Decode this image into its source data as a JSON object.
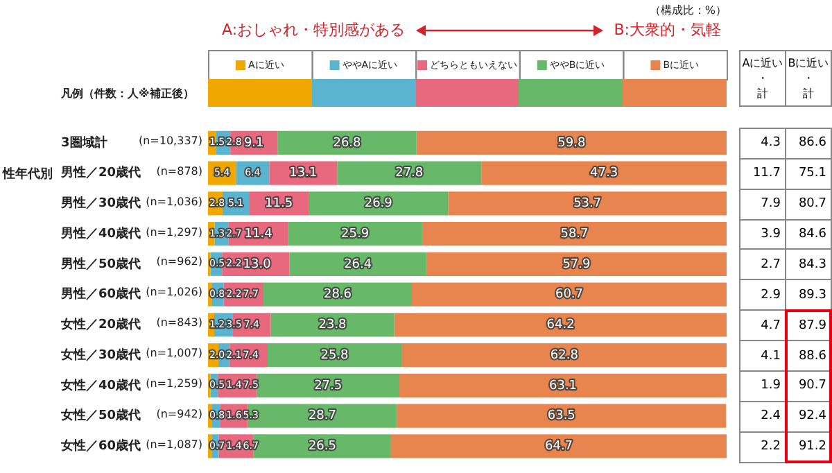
{
  "chart_data": {
    "type": "bar",
    "orientation": "horizontal",
    "stacked": true,
    "categories": [
      "3圏域計",
      "男性／20歳代",
      "男性／30歳代",
      "男性／40歳代",
      "男性／50歳代",
      "男性／60歳代",
      "女性／20歳代",
      "女性／30歳代",
      "女性／40歳代",
      "女性／50歳代",
      "女性／60歳代"
    ],
    "series": [
      {
        "name": "Aに近い",
        "color": "#f0a800",
        "values": [
          1.5,
          5.4,
          2.8,
          1.3,
          0.5,
          0.8,
          1.2,
          2.0,
          0.5,
          0.8,
          0.7
        ],
        "value_labels": [
          "1.5",
          "5.4",
          "2.8",
          "1.3",
          "0.5",
          "0.8",
          "1.2",
          "2.0",
          "0.5",
          "0.8",
          "0.7"
        ]
      },
      {
        "name": "ややAに近い",
        "color": "#5ab4d0",
        "values": [
          2.8,
          6.4,
          5.1,
          2.7,
          2.2,
          2.2,
          3.5,
          2.1,
          1.4,
          1.6,
          1.4
        ],
        "value_labels": [
          "2.8",
          "6.4",
          "5.1",
          "2.7",
          "2.2",
          "2.2",
          "3.5",
          "2.1",
          "1.4",
          "1.6",
          "1.4"
        ]
      },
      {
        "name": "どちらともいえない",
        "color": "#e8697e",
        "values": [
          9.1,
          13.1,
          11.5,
          11.4,
          13.0,
          7.7,
          7.4,
          7.4,
          7.5,
          5.3,
          6.7
        ],
        "value_labels": [
          "9.1",
          "13.1",
          "11.5",
          "11.4",
          "13.0",
          "7.7",
          "7.4",
          "7.4",
          "7.5",
          "5.3",
          "6.7"
        ]
      },
      {
        "name": "ややBに近い",
        "color": "#68b86a",
        "values": [
          26.8,
          27.8,
          26.9,
          25.9,
          26.4,
          28.6,
          23.8,
          25.8,
          27.5,
          28.7,
          26.5
        ],
        "value_labels": [
          "26.8",
          "27.8",
          "26.9",
          "25.9",
          "26.4",
          "28.6",
          "23.8",
          "25.8",
          "27.5",
          "28.7",
          "26.5"
        ]
      },
      {
        "name": "Bに近い",
        "color": "#e8854e",
        "values": [
          59.8,
          47.3,
          53.7,
          58.7,
          57.9,
          60.7,
          64.2,
          62.8,
          63.1,
          63.5,
          64.7
        ],
        "value_labels": [
          "59.8",
          "47.3",
          "53.7",
          "58.7",
          "57.9",
          "60.7",
          "64.2",
          "62.8",
          "63.1",
          "63.5",
          "64.7"
        ]
      }
    ],
    "xlim": [
      0,
      100
    ],
    "tick_labels": "y",
    "grid": false,
    "legend": "top",
    "annotations": [
      "（構成比：%）",
      "A:おしゃれ・特別感がある",
      "B:大衆的・気軽",
      "凡例（件数：人※補正後）",
      "性年代別",
      "Aに近い・計",
      "Bに近い・計",
      "(n=10,337)",
      "(n=878)",
      "(n=1,036)",
      "(n=1,297)",
      "(n=962)",
      "(n=1,026)",
      "(n=843)",
      "(n=1,007)",
      "(n=1,259)",
      "(n=942)",
      "(n=1,087)",
      "4.3",
      "11.7",
      "7.9",
      "3.9",
      "2.7",
      "2.9",
      "4.7",
      "4.1",
      "1.9",
      "2.4",
      "2.2",
      "86.6",
      "75.1",
      "80.7",
      "84.6",
      "84.3",
      "89.3",
      "87.9",
      "88.6",
      "90.7",
      "92.4",
      "91.2"
    ]
  }
}
